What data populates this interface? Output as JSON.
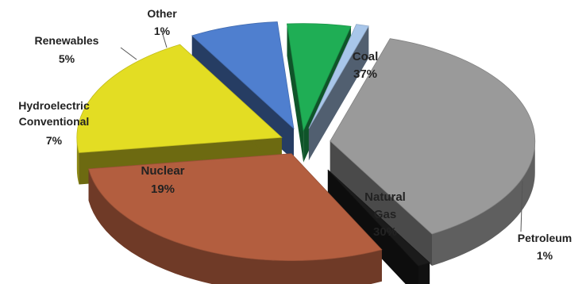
{
  "chart_data": {
    "type": "pie",
    "style": "3d-exploded",
    "title": "",
    "legend": "none",
    "slices": [
      {
        "name": "Coal",
        "value": 37,
        "label": "37%",
        "color": "#9a9a9a"
      },
      {
        "name": "Petroleum",
        "value": 1,
        "label": "1%",
        "color": "#1b1b1b"
      },
      {
        "name": "Natural Gas",
        "value": 30,
        "label": "30%",
        "color": "#b35e3f"
      },
      {
        "name": "Nuclear",
        "value": 19,
        "label": "19%",
        "color": "#e3dd23"
      },
      {
        "name": "Hydroelectric Conventional",
        "value": 7,
        "label": "7%",
        "color": "#4f7fcf"
      },
      {
        "name": "Renewables",
        "value": 5,
        "label": "5%",
        "color": "#1fae55"
      },
      {
        "name": "Other",
        "value": 1,
        "label": "1%",
        "color": "#a8c6ea"
      }
    ],
    "labels": {
      "coal": {
        "name": "Coal",
        "pct": "37%"
      },
      "natural_gas": {
        "line1": "Natural",
        "line2": "Gas",
        "pct": "30%"
      },
      "nuclear": {
        "name": "Nuclear",
        "pct": "19%"
      },
      "hydro": {
        "line1": "Hydroelectric",
        "line2": "Conventional",
        "pct": "7%"
      },
      "renewables": {
        "name": "Renewables",
        "pct": "5%"
      },
      "other": {
        "name": "Other",
        "pct": "1%"
      },
      "petroleum": {
        "name": "Petroleum",
        "pct": "1%"
      }
    }
  }
}
